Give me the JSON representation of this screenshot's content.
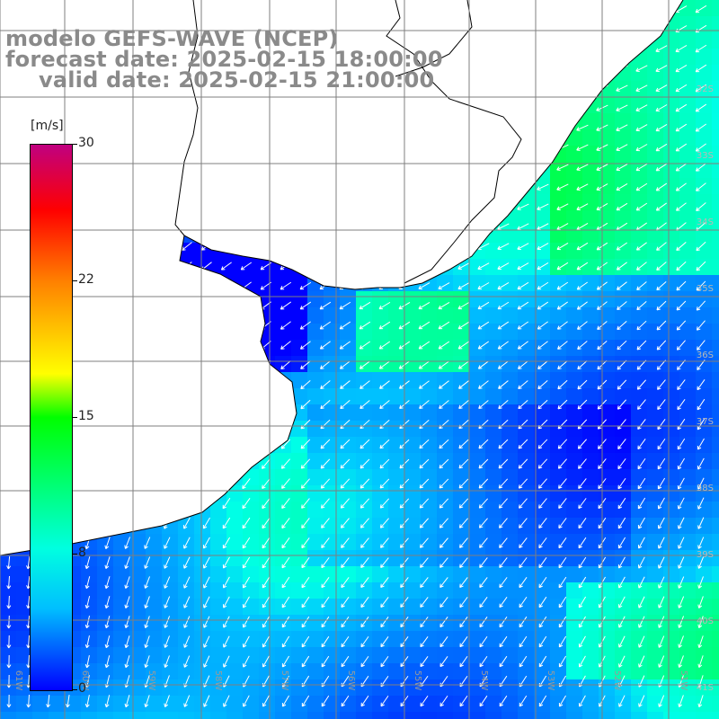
{
  "title": {
    "line1": "modelo GEFS-WAVE (NCEP)",
    "line2": "forecast date: 2025-02-15 18:00:00",
    "line3": "valid date: 2025-02-15 21:00:00"
  },
  "colorbar": {
    "unit": "[m/s]",
    "ticks": [
      "30",
      "22",
      "15",
      "8",
      "0"
    ],
    "colors": [
      "#0000ff",
      "#00bfff",
      "#00ffe0",
      "#00ff00",
      "#ffff00",
      "#ff8000",
      "#ff0000",
      "#c00080"
    ]
  },
  "lon_labels": [
    "61W",
    "60W",
    "59W",
    "58W",
    "57W",
    "56W",
    "55W",
    "54W",
    "53W",
    "52W",
    "51W"
  ],
  "lat_labels": [
    "32S",
    "33S",
    "34S",
    "35S",
    "36S",
    "37S",
    "38S",
    "39S",
    "40S",
    "41S"
  ],
  "colors": {
    "land": "#ffffff",
    "coast": "#000000",
    "grid": "#7f7f7f",
    "title_text": "#8a8a8a"
  }
}
